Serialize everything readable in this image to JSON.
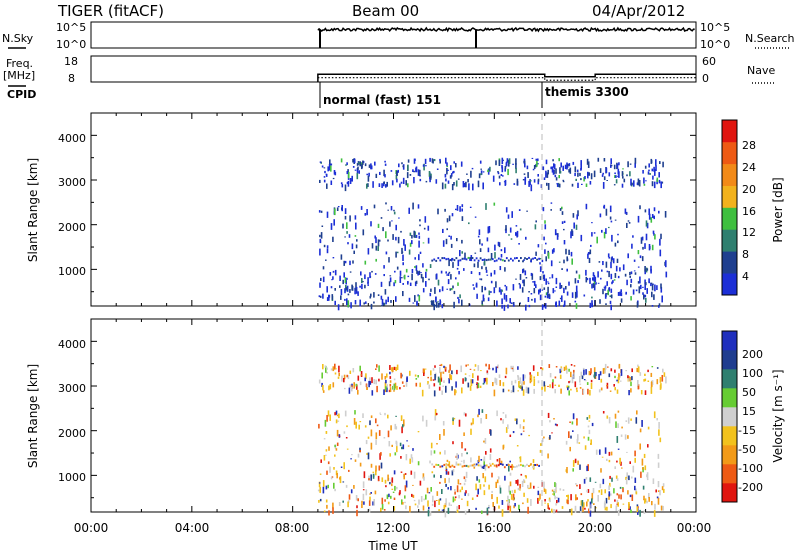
{
  "header": {
    "title": "TIGER (fitACF)",
    "beam": "Beam 00",
    "date": "04/Apr/2012"
  },
  "top_panels": {
    "nsky_label": "N.Sky",
    "nsearch_label": "N.Search",
    "freq_label_1": "Freq.",
    "freq_label_2": "[MHz]",
    "nave_label": "Nave",
    "cpid_label": "CPID",
    "noise_ticks_left": [
      "10^5",
      "10^0"
    ],
    "noise_ticks_right": [
      "10^5",
      "10^0"
    ],
    "freq_ticks_left": [
      "18",
      "8"
    ],
    "nave_ticks_right": [
      "60",
      "0"
    ],
    "cpid_segments": [
      {
        "label": "normal (fast) 151",
        "start_hr": 9.0
      },
      {
        "label": "themis 3300",
        "start_hr": 18.0
      }
    ]
  },
  "colorbars": {
    "power": {
      "label": "Power [dB]",
      "ticks": [
        "4",
        "8",
        "12",
        "16",
        "20",
        "24",
        "28"
      ],
      "colors": [
        "#1c2fd6",
        "#1f3f8f",
        "#2f7f6f",
        "#3fbf3f",
        "#f2b21d",
        "#f28a18",
        "#ee5a14",
        "#e0150f"
      ]
    },
    "velocity": {
      "label": "Velocity [m s⁻¹]",
      "ticks": [
        "200",
        "100",
        "50",
        "15",
        "-15",
        "-50",
        "-100",
        "-200"
      ],
      "colors": [
        "#1f2fbd",
        "#1f3d8f",
        "#2f7f6f",
        "#66cc33",
        "#cfcfcf",
        "#f2c21d",
        "#f29a18",
        "#ee5a14",
        "#e0150f"
      ]
    }
  },
  "axes": {
    "ylabel": "Slant Range [km]",
    "xlabel": "Time UT",
    "y_ticks": [
      "1000",
      "2000",
      "3000",
      "4000"
    ],
    "x_ticks": [
      "00:00",
      "04:00",
      "08:00",
      "12:00",
      "16:00",
      "20:00",
      "00:00"
    ]
  },
  "chart_data": {
    "type": "heatmap",
    "x_range_hours": [
      0,
      24
    ],
    "y_range_km": [
      180,
      4500
    ],
    "data_start_hour": 9.0,
    "data_end_hour": 24.0,
    "freq_mhz_segments": [
      {
        "from_hr": 9.0,
        "to_hr": 15.5,
        "value": 11
      },
      {
        "from_hr": 15.5,
        "to_hr": 18.0,
        "value": 11
      },
      {
        "from_hr": 18.0,
        "to_hr": 20.0,
        "value": 10
      },
      {
        "from_hr": 20.0,
        "to_hr": 24.0,
        "value": 11
      }
    ],
    "nave_segments": [
      {
        "from_hr": 9.0,
        "to_hr": 18.0,
        "value": 10
      },
      {
        "from_hr": 18.0,
        "to_hr": 20.0,
        "value": 4
      },
      {
        "from_hr": 20.0,
        "to_hr": 24.0,
        "value": 10
      }
    ],
    "scatter_bands_km": [
      {
        "from_km": 2900,
        "to_km": 3500,
        "weight": 3
      },
      {
        "from_km": 1000,
        "to_km": 2500,
        "weight": 2
      },
      {
        "from_km": 200,
        "to_km": 1000,
        "weight": 2
      }
    ]
  }
}
